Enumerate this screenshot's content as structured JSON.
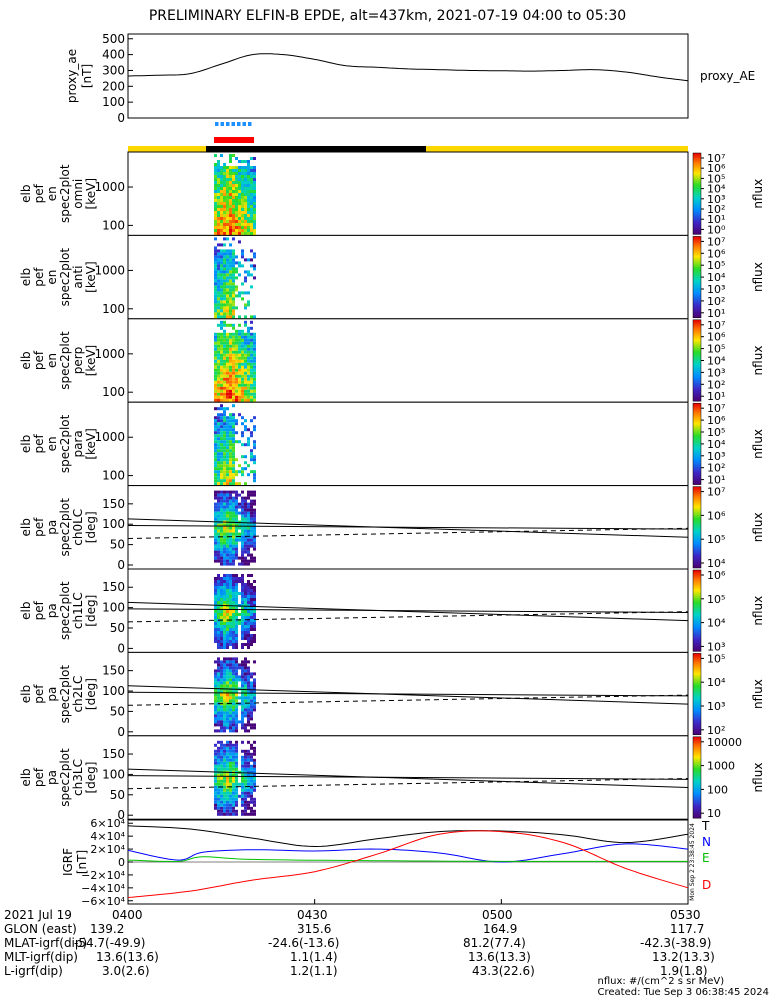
{
  "title": "PRELIMINARY ELFIN-B EPDE, alt=437km, 2021-07-19 04:00 to 05:30",
  "proxy_ae": {
    "ylabel": "proxy_ae\n[nT]",
    "ylabel_lines": [
      "proxy_ae",
      "[nT]"
    ],
    "legend": "proxy_AE",
    "y_ticks": [
      "500",
      "400",
      "300",
      "200",
      "100",
      "0"
    ],
    "ylim": [
      0,
      530
    ]
  },
  "spectrogram_panels": [
    {
      "ylabel": [
        "elb",
        "pef",
        "en",
        "spec2plot",
        "omni",
        "[keV]"
      ],
      "y_ticks": [
        "1000",
        "100"
      ],
      "cbar_label": "nflux"
    },
    {
      "ylabel": [
        "elb",
        "pef",
        "en",
        "spec2plot",
        "anti",
        "[keV]"
      ],
      "y_ticks": [
        "1000",
        "100"
      ],
      "cbar_label": "nflux"
    },
    {
      "ylabel": [
        "elb",
        "pef",
        "en",
        "spec2plot",
        "perp",
        "[keV]"
      ],
      "y_ticks": [
        "1000",
        "100"
      ],
      "cbar_label": "nflux"
    },
    {
      "ylabel": [
        "elb",
        "pef",
        "en",
        "spec2plot",
        "para",
        "[keV]"
      ],
      "y_ticks": [
        "1000",
        "100"
      ],
      "cbar_label": "nflux"
    },
    {
      "ylabel": [
        "elb",
        "pef",
        "pa",
        "spec2plot",
        "ch0LC",
        "[deg]"
      ],
      "y_ticks": [
        "150",
        "100",
        "50",
        "0"
      ],
      "cbar_label": "nflux"
    },
    {
      "ylabel": [
        "elb",
        "pef",
        "pa",
        "spec2plot",
        "ch1LC",
        "[deg]"
      ],
      "y_ticks": [
        "150",
        "100",
        "50",
        "0"
      ],
      "cbar_label": "nflux"
    },
    {
      "ylabel": [
        "elb",
        "pef",
        "pa",
        "spec2plot",
        "ch2LC",
        "[deg]"
      ],
      "y_ticks": [
        "150",
        "100",
        "50",
        "0"
      ],
      "cbar_label": "nflux"
    },
    {
      "ylabel": [
        "elb",
        "pef",
        "pa",
        "spec2plot",
        "ch3LC",
        "[deg]"
      ],
      "y_ticks": [
        "150",
        "100",
        "50",
        "0"
      ],
      "cbar_label": "nflux"
    }
  ],
  "colorbars": [
    {
      "ticks": [
        "10⁷",
        "10⁶",
        "10⁵",
        "10⁴",
        "10³",
        "10²",
        "10¹",
        "10⁰"
      ]
    },
    {
      "ticks": [
        "10⁷",
        "10⁶",
        "10⁵",
        "10⁴",
        "10³",
        "10²",
        "10¹"
      ]
    },
    {
      "ticks": [
        "10⁷",
        "10⁶",
        "10⁵",
        "10⁴",
        "10³",
        "10²",
        "10¹"
      ]
    },
    {
      "ticks": [
        "10⁷",
        "10⁶",
        "10⁵",
        "10⁴",
        "10³",
        "10²",
        "10¹"
      ]
    },
    {
      "ticks": [
        "10⁷",
        "10⁶",
        "10⁵",
        "10⁴"
      ]
    },
    {
      "ticks": [
        "10⁶",
        "10⁵",
        "10⁴",
        "10³"
      ]
    },
    {
      "ticks": [
        "10⁵",
        "10⁴",
        "10³",
        "10²"
      ]
    },
    {
      "ticks": [
        "10000",
        "1000",
        "100",
        "10"
      ]
    }
  ],
  "igrf": {
    "ylabel": [
      "IGRF",
      "[nT]"
    ],
    "y_ticks": [
      "6×10⁴",
      "4×10⁴",
      "2×10⁴",
      "0",
      "−2×10⁴",
      "−4×10⁴",
      "−6×10⁴"
    ],
    "legend": [
      {
        "name": "T",
        "color": "#000000"
      },
      {
        "name": "N",
        "color": "#0000ff"
      },
      {
        "name": "E",
        "color": "#00c000"
      },
      {
        "name": "D",
        "color": "#ff0000"
      }
    ],
    "side_text": "Mon Sep  2 23:38:45 2024"
  },
  "footer": {
    "rows": [
      {
        "label": "2021 Jul 19",
        "values": [
          "0400",
          "0430",
          "0500",
          "0530"
        ]
      },
      {
        "label": "GLON (east)",
        "values": [
          "139.2",
          "315.6",
          "164.9",
          "117.7"
        ]
      },
      {
        "label": "MLAT-igrf(dip)",
        "values": [
          "-54.7(-49.9)",
          "-24.6(-13.6)",
          "81.2(77.4)",
          "-42.3(-38.9)"
        ]
      },
      {
        "label": "MLT-igrf(dip)",
        "values": [
          "13.6(13.6)",
          "1.1(1.4)",
          "13.6(13.3)",
          "13.2(13.3)"
        ]
      },
      {
        "label": "L-igrf(dip)",
        "values": [
          "3.0(2.6)",
          "1.2(1.1)",
          "43.3(22.6)",
          "1.9(1.8)"
        ]
      }
    ],
    "credits": [
      "nflux: #/(cm^2 s sr MeV)",
      "Created: Tue Sep  3 06:38:45 2024"
    ]
  },
  "chart_data": {
    "type": "line",
    "title": "PRELIMINARY ELFIN-B EPDE, alt=437km, 2021-07-19 04:00 to 05:30",
    "x_ticks": [
      "0400",
      "0430",
      "0500",
      "0530"
    ],
    "x_minutes": [
      0,
      30,
      60,
      90
    ],
    "series": [
      {
        "name": "proxy_AE",
        "x_minutes": [
          0,
          5,
          10,
          15,
          20,
          25,
          30,
          35,
          40,
          45,
          50,
          55,
          60,
          65,
          70,
          75,
          80,
          85,
          90
        ],
        "values": [
          265,
          270,
          280,
          340,
          400,
          400,
          370,
          330,
          320,
          310,
          305,
          300,
          298,
          296,
          300,
          305,
          290,
          260,
          235
        ]
      }
    ],
    "igrf_series": [
      {
        "name": "T",
        "x_minutes": [
          0,
          10,
          20,
          30,
          40,
          50,
          60,
          70,
          80,
          90
        ],
        "values": [
          56000,
          51000,
          37000,
          24000,
          36000,
          47000,
          48000,
          42000,
          30000,
          43000
        ]
      },
      {
        "name": "N",
        "x_minutes": [
          0,
          8,
          12,
          20,
          30,
          40,
          50,
          60,
          70,
          80,
          90
        ],
        "values": [
          18000,
          3000,
          15000,
          19000,
          17000,
          20000,
          14000,
          0,
          13000,
          28000,
          20000
        ]
      },
      {
        "name": "E",
        "x_minutes": [
          0,
          8,
          12,
          20,
          40,
          60,
          80,
          90
        ],
        "values": [
          3000,
          1000,
          8000,
          4000,
          2000,
          1000,
          1000,
          1000
        ]
      },
      {
        "name": "D",
        "x_minutes": [
          0,
          10,
          20,
          30,
          40,
          50,
          60,
          70,
          80,
          90
        ],
        "values": [
          -55000,
          -45000,
          -28000,
          -15000,
          12000,
          43000,
          47000,
          30000,
          -10000,
          -40000
        ]
      }
    ],
    "ylim_proxy_ae": [
      0,
      530
    ],
    "ylim_igrf": [
      -65000,
      65000
    ]
  }
}
